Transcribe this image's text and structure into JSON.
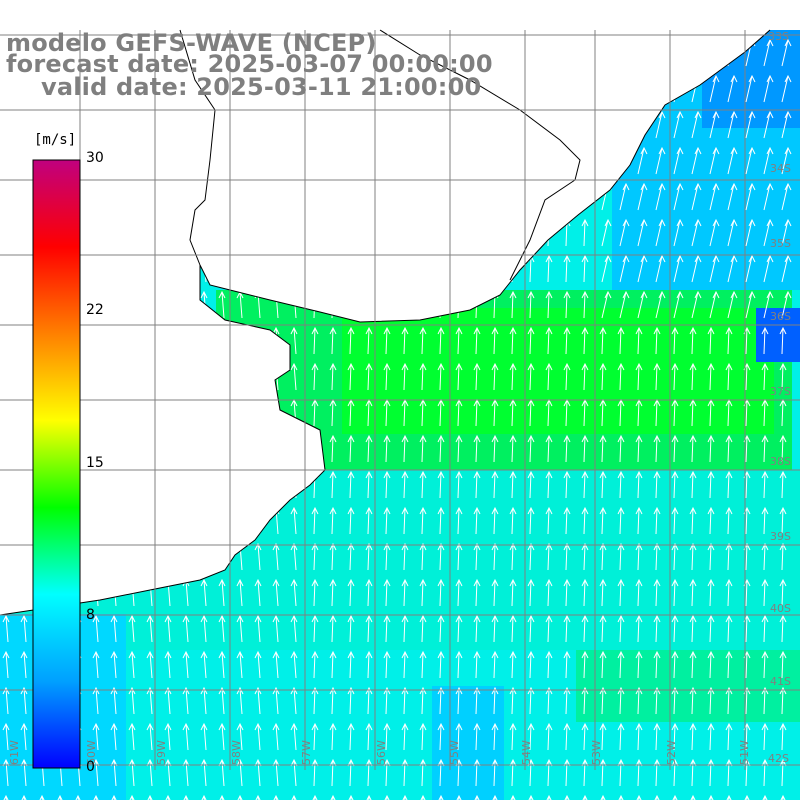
{
  "title": {
    "model": "modelo GEFS-WAVE (NCEP)",
    "forecast": "forecast date: 2025-03-07 00:00:00",
    "valid": "valid date: 2025-03-11 21:00:00"
  },
  "colorbar": {
    "unit": "[m/s]",
    "ticks": [
      "30",
      "22",
      "15",
      "8",
      "0"
    ],
    "tick_values": [
      30,
      22,
      15,
      8,
      0
    ],
    "colors": [
      "#0000ff",
      "#00a0ff",
      "#00ffff",
      "#00ff00",
      "#ffff00",
      "#ff8000",
      "#ff0000",
      "#c0007f"
    ]
  },
  "map": {
    "lat_labels": [
      "33S",
      "34S",
      "35S",
      "36S",
      "37S",
      "38S",
      "39S",
      "40S",
      "41S"
    ],
    "lon_labels": [
      "61W",
      "60W",
      "59W",
      "58W",
      "57W",
      "56W",
      "55W",
      "54W",
      "53W",
      "52W",
      "51W"
    ],
    "corner_label": "42S",
    "land_color": "#ffffff",
    "coast_color": "#000000",
    "arrow_color": "#ffffff",
    "grid_color": "#808080"
  }
}
